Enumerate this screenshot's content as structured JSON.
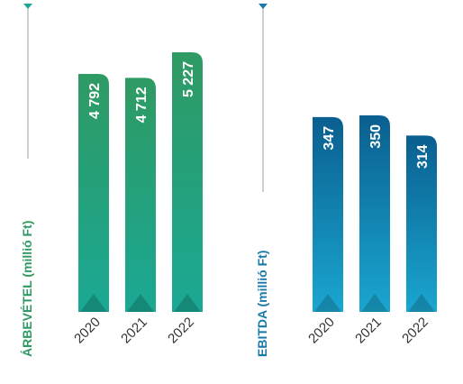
{
  "chart_data": [
    {
      "type": "bar",
      "ylabel": "ÁRBEVÉTEL (millió Ft)",
      "categories": [
        "2020",
        "2021",
        "2022"
      ],
      "values": [
        4792,
        4712,
        5227
      ],
      "value_labels": [
        "4 792",
        "4 712",
        "5 227"
      ],
      "color_top": "#2f9a63",
      "color_bottom": "#1aa894",
      "axis_color": "#2f9a63"
    },
    {
      "type": "bar",
      "ylabel": "EBITDA (millió Ft)",
      "categories": [
        "2020",
        "2021",
        "2022"
      ],
      "values": [
        347,
        350,
        314
      ],
      "value_labels": [
        "347",
        "350",
        "314"
      ],
      "color_top": "#0a5f8f",
      "color_bottom": "#1aa6d0",
      "axis_color": "#1a7aa6"
    }
  ]
}
